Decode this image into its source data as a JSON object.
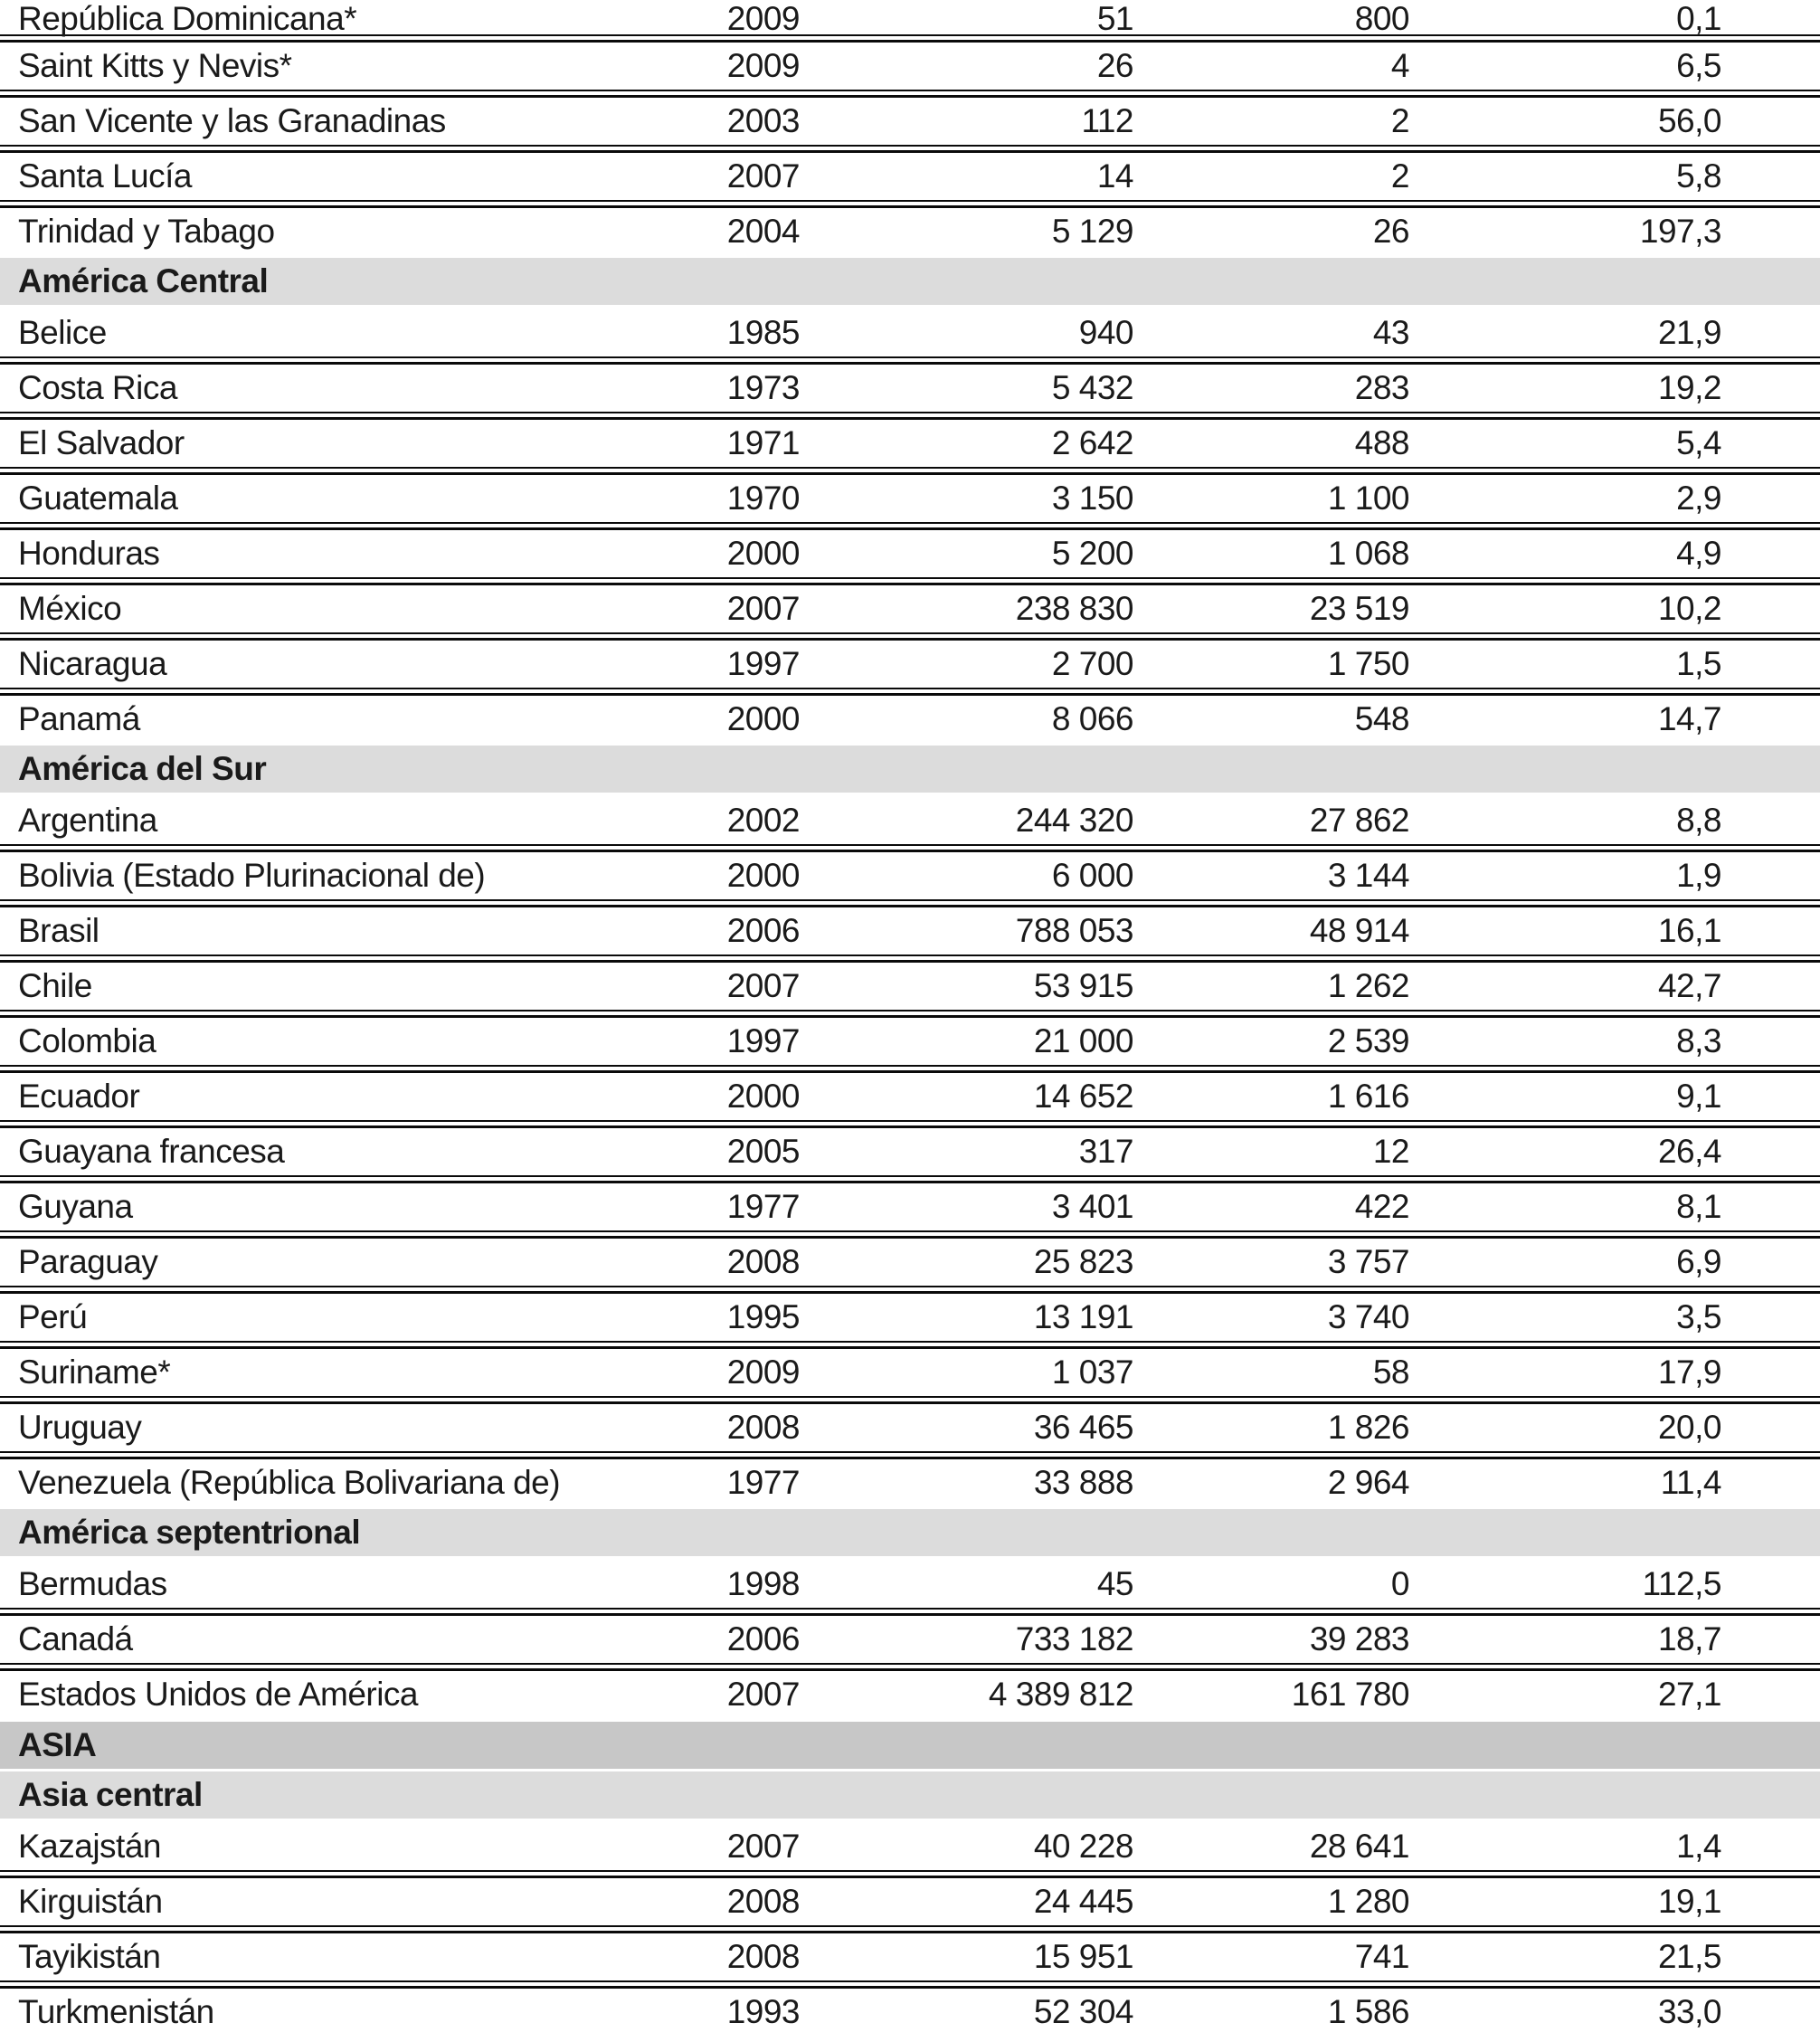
{
  "page": {
    "background": "#ffffff"
  },
  "table": {
    "colors": {
      "section_header_bg": "#dcdcdc",
      "region_header_bg": "#c7c7c7",
      "separator_line": "#0a0a0a",
      "text": "#1a1a1a"
    },
    "rows": [
      {
        "type": "data",
        "name": "República Dominicana*",
        "year": "2009",
        "v1": "51",
        "v2": "800",
        "v3": "0,1"
      },
      {
        "type": "data",
        "name": "Saint Kitts y Nevis*",
        "year": "2009",
        "v1": "26",
        "v2": "4",
        "v3": "6,5"
      },
      {
        "type": "data",
        "name": "San Vicente y las Granadinas",
        "year": "2003",
        "v1": "112",
        "v2": "2",
        "v3": "56,0"
      },
      {
        "type": "data",
        "name": "Santa Lucía",
        "year": "2007",
        "v1": "14",
        "v2": "2",
        "v3": "5,8"
      },
      {
        "type": "data",
        "name": "Trinidad y Tabago",
        "year": "2004",
        "v1": "5 129",
        "v2": "26",
        "v3": "197,3"
      },
      {
        "type": "section",
        "label": "América Central"
      },
      {
        "type": "data",
        "name": "Belice",
        "year": "1985",
        "v1": "940",
        "v2": "43",
        "v3": "21,9"
      },
      {
        "type": "data",
        "name": "Costa Rica",
        "year": "1973",
        "v1": "5 432",
        "v2": "283",
        "v3": "19,2"
      },
      {
        "type": "data",
        "name": "El Salvador",
        "year": "1971",
        "v1": "2 642",
        "v2": "488",
        "v3": "5,4"
      },
      {
        "type": "data",
        "name": "Guatemala",
        "year": "1970",
        "v1": "3 150",
        "v2": "1 100",
        "v3": "2,9"
      },
      {
        "type": "data",
        "name": "Honduras",
        "year": "2000",
        "v1": "5 200",
        "v2": "1 068",
        "v3": "4,9"
      },
      {
        "type": "data",
        "name": "México",
        "year": "2007",
        "v1": "238 830",
        "v2": "23 519",
        "v3": "10,2"
      },
      {
        "type": "data",
        "name": "Nicaragua",
        "year": "1997",
        "v1": "2 700",
        "v2": "1 750",
        "v3": "1,5"
      },
      {
        "type": "data",
        "name": "Panamá",
        "year": "2000",
        "v1": "8 066",
        "v2": "548",
        "v3": "14,7"
      },
      {
        "type": "section",
        "label": "América del Sur"
      },
      {
        "type": "data",
        "name": "Argentina",
        "year": "2002",
        "v1": "244 320",
        "v2": "27 862",
        "v3": "8,8"
      },
      {
        "type": "data",
        "name": "Bolivia (Estado Plurinacional de)",
        "year": "2000",
        "v1": "6 000",
        "v2": "3 144",
        "v3": "1,9"
      },
      {
        "type": "data",
        "name": "Brasil",
        "year": "2006",
        "v1": "788 053",
        "v2": "48 914",
        "v3": "16,1"
      },
      {
        "type": "data",
        "name": "Chile",
        "year": "2007",
        "v1": "53 915",
        "v2": "1 262",
        "v3": "42,7"
      },
      {
        "type": "data",
        "name": "Colombia",
        "year": "1997",
        "v1": "21 000",
        "v2": "2 539",
        "v3": "8,3"
      },
      {
        "type": "data",
        "name": "Ecuador",
        "year": "2000",
        "v1": "14 652",
        "v2": "1 616",
        "v3": "9,1"
      },
      {
        "type": "data",
        "name": "Guayana francesa",
        "year": "2005",
        "v1": "317",
        "v2": "12",
        "v3": "26,4"
      },
      {
        "type": "data",
        "name": "Guyana",
        "year": "1977",
        "v1": "3 401",
        "v2": "422",
        "v3": "8,1"
      },
      {
        "type": "data",
        "name": "Paraguay",
        "year": "2008",
        "v1": "25 823",
        "v2": "3 757",
        "v3": "6,9"
      },
      {
        "type": "data",
        "name": "Perú",
        "year": "1995",
        "v1": "13 191",
        "v2": "3 740",
        "v3": "3,5"
      },
      {
        "type": "data",
        "name": "Suriname*",
        "year": "2009",
        "v1": "1 037",
        "v2": "58",
        "v3": "17,9"
      },
      {
        "type": "data",
        "name": "Uruguay",
        "year": "2008",
        "v1": "36 465",
        "v2": "1 826",
        "v3": "20,0"
      },
      {
        "type": "data",
        "name": "Venezuela (República Bolivariana de)",
        "year": "1977",
        "v1": "33 888",
        "v2": "2 964",
        "v3": "11,4"
      },
      {
        "type": "section",
        "label": "América septentrional"
      },
      {
        "type": "data",
        "name": "Bermudas",
        "year": "1998",
        "v1": "45",
        "v2": "0",
        "v3": "112,5"
      },
      {
        "type": "data",
        "name": "Canadá",
        "year": "2006",
        "v1": "733 182",
        "v2": "39 283",
        "v3": "18,7"
      },
      {
        "type": "data",
        "name": "Estados Unidos de América",
        "year": "2007",
        "v1": "4 389 812",
        "v2": "161 780",
        "v3": "27,1"
      },
      {
        "type": "major",
        "label": "ASIA"
      },
      {
        "type": "section",
        "label": "Asia central"
      },
      {
        "type": "data",
        "name": "Kazajstán",
        "year": "2007",
        "v1": "40 228",
        "v2": "28 641",
        "v3": "1,4"
      },
      {
        "type": "data",
        "name": "Kirguistán",
        "year": "2008",
        "v1": "24 445",
        "v2": "1 280",
        "v3": "19,1"
      },
      {
        "type": "data",
        "name": "Tayikistán",
        "year": "2008",
        "v1": "15 951",
        "v2": "741",
        "v3": "21,5"
      },
      {
        "type": "data",
        "name": "Turkmenistán",
        "year": "1993",
        "v1": "52 304",
        "v2": "1 586",
        "v3": "33,0"
      }
    ]
  }
}
